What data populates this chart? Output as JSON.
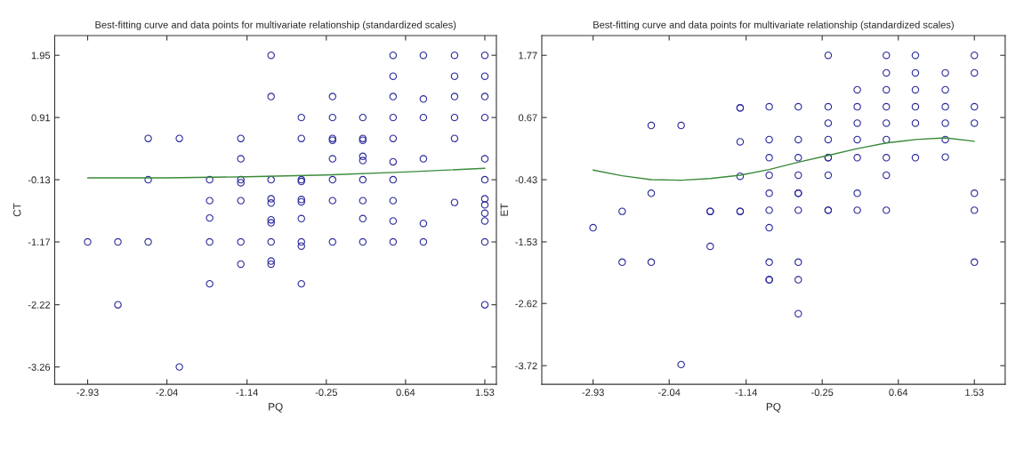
{
  "chart_data": [
    {
      "type": "scatter",
      "title": "Best-fitting curve and data points for multivariate relationship (standardized scales)",
      "xlabel": "PQ",
      "ylabel": "CT",
      "xlim": [
        -3.3,
        1.66
      ],
      "ylim": [
        -3.55,
        2.28
      ],
      "xticks": [
        -2.93,
        -2.04,
        -1.14,
        -0.25,
        0.64,
        1.53
      ],
      "yticks": [
        -3.26,
        -2.22,
        -1.17,
        -0.13,
        0.91,
        1.95
      ],
      "grid": false,
      "series": [
        {
          "color": "#2b2b9b",
          "marker": "circle",
          "x": [
            -2.93,
            -2.59,
            -2.59,
            -2.25,
            -2.25,
            -2.25,
            -1.9,
            -1.9,
            -1.56,
            -1.56,
            -1.56,
            -1.56,
            -1.56,
            -1.21,
            -1.21,
            -1.21,
            -1.21,
            -1.21,
            -1.21,
            -1.21,
            -0.87,
            -0.87,
            -0.87,
            -0.87,
            -0.87,
            -0.87,
            -0.87,
            -0.87,
            -0.87,
            -0.87,
            -0.53,
            -0.53,
            -0.53,
            -0.53,
            -0.53,
            -0.53,
            -0.53,
            -0.53,
            -0.53,
            -0.53,
            -0.18,
            -0.18,
            -0.18,
            -0.18,
            -0.18,
            -0.18,
            -0.18,
            -0.18,
            0.16,
            0.16,
            0.16,
            0.16,
            0.16,
            0.16,
            0.16,
            0.16,
            0.16,
            0.5,
            0.5,
            0.5,
            0.5,
            0.5,
            0.5,
            0.5,
            0.5,
            0.5,
            0.5,
            0.84,
            0.84,
            0.84,
            0.84,
            0.84,
            0.84,
            1.19,
            1.19,
            1.19,
            1.19,
            1.19,
            1.19,
            1.53,
            1.53,
            1.53,
            1.53,
            1.53,
            1.53,
            1.53,
            1.53,
            1.53,
            1.53,
            1.53,
            1.53
          ],
          "values": [
            -1.17,
            -1.17,
            -2.22,
            0.56,
            -0.13,
            -1.17,
            0.56,
            -3.26,
            -0.13,
            -0.48,
            -0.77,
            -1.17,
            -1.87,
            0.56,
            0.22,
            -0.13,
            -0.18,
            -0.48,
            -1.17,
            -1.54,
            1.95,
            1.26,
            -0.13,
            -0.45,
            -0.52,
            -0.8,
            -0.85,
            -1.17,
            -1.49,
            -1.54,
            0.91,
            0.56,
            -0.13,
            -0.16,
            -0.46,
            -0.5,
            -0.78,
            -1.17,
            -1.24,
            -1.87,
            1.26,
            0.91,
            0.56,
            0.53,
            0.22,
            -0.13,
            -0.48,
            -1.17,
            0.91,
            0.56,
            0.53,
            0.26,
            0.19,
            -0.13,
            -0.48,
            -0.78,
            -1.17,
            1.95,
            1.6,
            1.26,
            0.91,
            0.56,
            0.17,
            -0.13,
            -0.48,
            -0.82,
            -1.17,
            1.95,
            1.22,
            0.91,
            0.22,
            -0.86,
            -1.17,
            1.95,
            1.6,
            1.26,
            0.91,
            0.56,
            -0.51,
            1.95,
            1.6,
            1.26,
            0.91,
            0.22,
            -0.13,
            -0.45,
            -0.55,
            -0.69,
            -0.82,
            -1.17,
            -2.22
          ]
        },
        {
          "type": "line",
          "color": "#3a8a3a",
          "x": [
            -2.93,
            -2.04,
            -1.14,
            -0.25,
            0.64,
            1.53
          ],
          "values": [
            -0.1,
            -0.1,
            -0.08,
            -0.05,
            0.0,
            0.06
          ]
        }
      ]
    },
    {
      "type": "scatter",
      "title": "Best-fitting curve and data points for multivariate relationship (standardized scales)",
      "xlabel": "PQ",
      "ylabel": "ET",
      "xlim": [
        -3.53,
        1.89
      ],
      "ylim": [
        -4.05,
        2.12
      ],
      "xticks": [
        -2.93,
        -2.04,
        -1.14,
        -0.25,
        0.64,
        1.53
      ],
      "yticks": [
        -3.72,
        -2.62,
        -1.53,
        -0.43,
        0.67,
        1.77
      ],
      "grid": false,
      "series": [
        {
          "color": "#2b2b9b",
          "marker": "circle",
          "x": [
            -2.93,
            -2.59,
            -2.59,
            -2.25,
            -2.25,
            -2.25,
            -1.9,
            -1.9,
            -1.56,
            -1.56,
            -1.56,
            -1.21,
            -1.21,
            -1.21,
            -1.21,
            -1.21,
            -1.21,
            -0.87,
            -0.87,
            -0.87,
            -0.87,
            -0.87,
            -0.87,
            -0.87,
            -0.87,
            -0.87,
            -0.87,
            -0.53,
            -0.53,
            -0.53,
            -0.53,
            -0.53,
            -0.53,
            -0.53,
            -0.53,
            -0.53,
            -0.53,
            -0.18,
            -0.18,
            -0.18,
            -0.18,
            -0.18,
            -0.18,
            -0.18,
            -0.18,
            -0.18,
            0.16,
            0.16,
            0.16,
            0.16,
            0.16,
            0.16,
            0.16,
            0.5,
            0.5,
            0.5,
            0.5,
            0.5,
            0.5,
            0.5,
            0.5,
            0.5,
            0.84,
            0.84,
            0.84,
            0.84,
            0.84,
            0.84,
            1.19,
            1.19,
            1.19,
            1.19,
            1.19,
            1.19,
            1.53,
            1.53,
            1.53,
            1.53,
            1.53,
            1.53,
            1.53
          ],
          "values": [
            -1.28,
            -0.99,
            -1.89,
            0.53,
            -0.67,
            -1.89,
            0.53,
            -3.7,
            -0.99,
            -0.99,
            -1.61,
            0.84,
            0.84,
            0.24,
            -0.37,
            -0.99,
            -0.99,
            0.86,
            0.28,
            -0.04,
            -0.35,
            -0.67,
            -0.97,
            -1.28,
            -1.89,
            -2.2,
            -2.2,
            0.86,
            0.28,
            -0.04,
            -0.35,
            -0.67,
            -0.67,
            -0.97,
            -1.89,
            -2.2,
            -2.8,
            1.77,
            0.86,
            0.57,
            0.28,
            -0.04,
            -0.04,
            -0.35,
            -0.97,
            -0.97,
            1.16,
            0.86,
            0.57,
            0.28,
            -0.04,
            -0.67,
            -0.97,
            1.77,
            1.46,
            1.16,
            0.86,
            0.57,
            0.28,
            -0.04,
            -0.35,
            -0.97,
            1.77,
            1.46,
            1.16,
            0.86,
            0.57,
            -0.04,
            1.46,
            1.16,
            0.86,
            0.57,
            0.28,
            -0.03,
            1.77,
            1.46,
            0.86,
            0.57,
            -0.67,
            -0.97,
            -1.89
          ]
        },
        {
          "type": "line",
          "color": "#3a8a3a",
          "x": [
            -2.93,
            -2.59,
            -2.25,
            -1.9,
            -1.56,
            -1.21,
            -0.87,
            -0.53,
            -0.18,
            0.16,
            0.5,
            0.84,
            1.19,
            1.53
          ],
          "values": [
            -0.26,
            -0.36,
            -0.43,
            -0.44,
            -0.41,
            -0.35,
            -0.25,
            -0.12,
            0.0,
            0.12,
            0.22,
            0.28,
            0.31,
            0.25
          ]
        }
      ]
    }
  ]
}
